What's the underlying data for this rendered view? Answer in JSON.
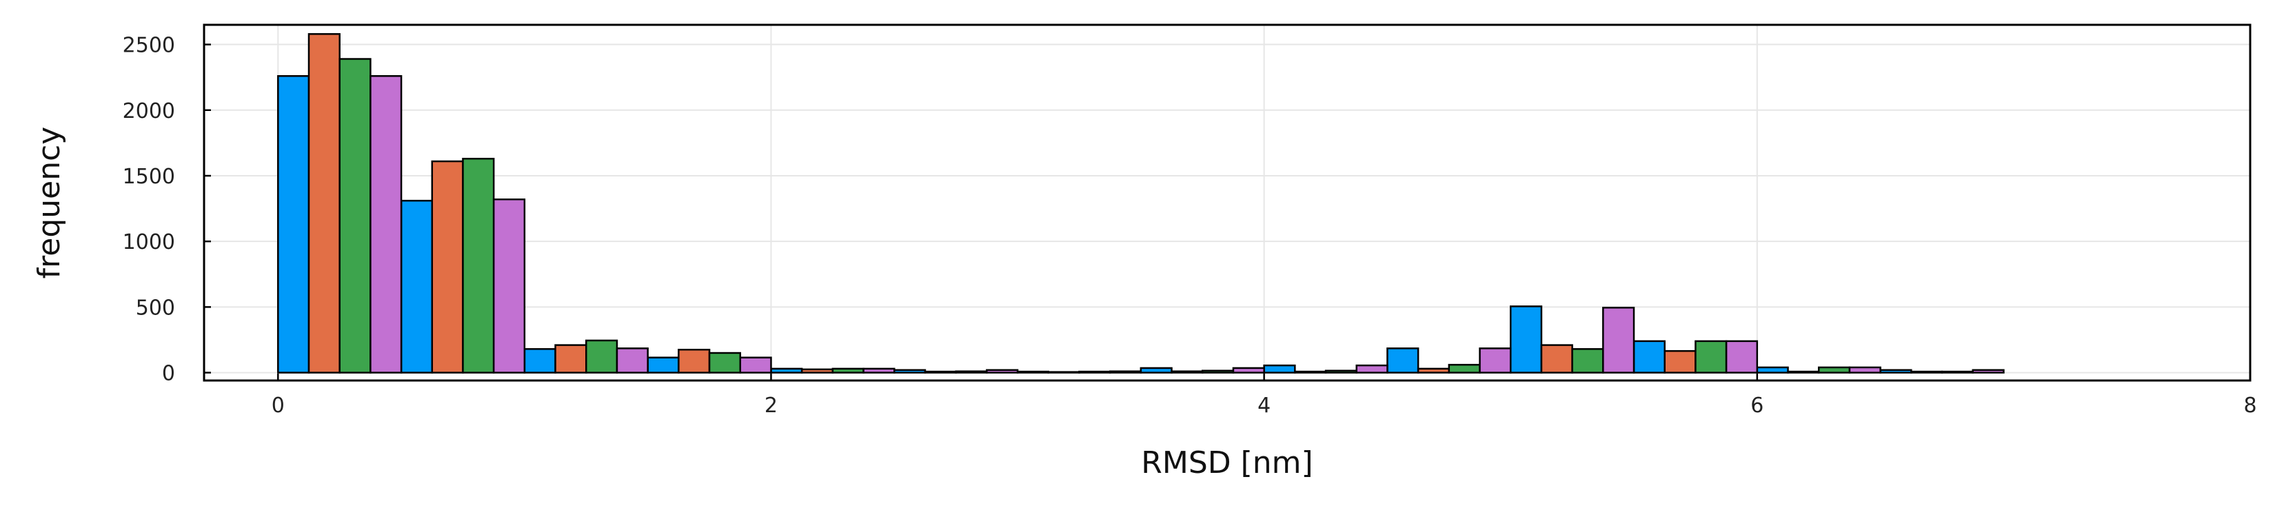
{
  "chart_data": {
    "type": "bar",
    "title": "",
    "xlabel": "RMSD [nm]",
    "ylabel": "frequency",
    "xlim": [
      -0.3,
      8.0
    ],
    "ylim": [
      -60,
      2650
    ],
    "grid": true,
    "legend": "none",
    "bin_width": 0.5,
    "bin_starts": [
      0.0,
      0.5,
      1.0,
      1.5,
      2.0,
      2.5,
      3.0,
      3.5,
      4.0,
      4.5,
      5.0,
      5.5,
      6.0,
      6.5
    ],
    "x_ticks": [
      0,
      2,
      4,
      6,
      8
    ],
    "y_ticks": [
      0,
      500,
      1000,
      1500,
      2000,
      2500
    ],
    "series": [
      {
        "color": "#009af9",
        "values": [
          2260,
          1310,
          180,
          115,
          30,
          20,
          8,
          35,
          55,
          185,
          505,
          240,
          40,
          20
        ]
      },
      {
        "color": "#e26f46",
        "values": [
          2580,
          1610,
          210,
          175,
          25,
          8,
          5,
          10,
          8,
          30,
          210,
          165,
          8,
          8
        ]
      },
      {
        "color": "#3da44d",
        "values": [
          2390,
          1630,
          245,
          150,
          30,
          10,
          8,
          15,
          15,
          60,
          180,
          240,
          40,
          8
        ]
      },
      {
        "color": "#c271d2",
        "values": [
          2260,
          1320,
          185,
          115,
          30,
          20,
          10,
          35,
          55,
          185,
          495,
          240,
          40,
          20
        ]
      }
    ]
  }
}
